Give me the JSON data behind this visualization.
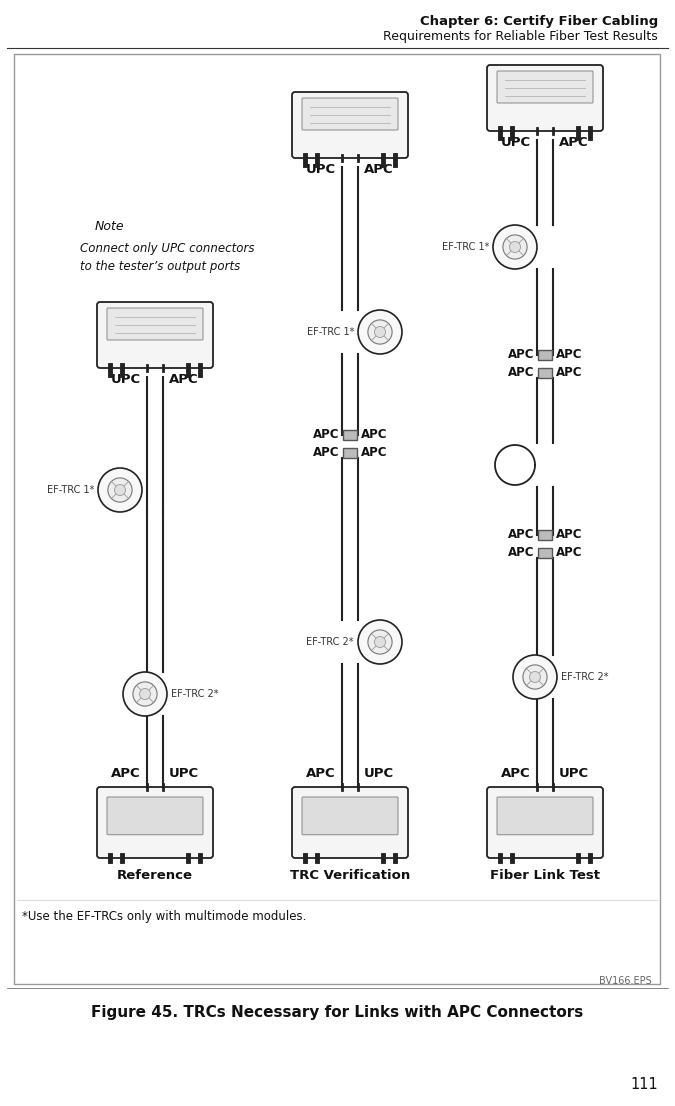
{
  "header_line1": "Chapter 6: Certify Fiber Cabling",
  "header_line2": "Requirements for Reliable Fiber Test Results",
  "page_number": "111",
  "figure_label": "BV166.EPS",
  "figure_caption": "Figure 45. TRCs Necessary for Links with APC Connectors",
  "footnote": "*Use the EF-TRCs only with multimode modules.",
  "note_title": "Note",
  "note_text": "Connect only UPC connectors\nto the tester’s output ports",
  "col1_label": "Reference",
  "col2_label": "TRC Verification",
  "col3_label": "Fiber Link Test",
  "bg_color": "#ffffff",
  "text_color": "#000000",
  "c1x": 155,
  "c2x": 350,
  "c3x": 545
}
